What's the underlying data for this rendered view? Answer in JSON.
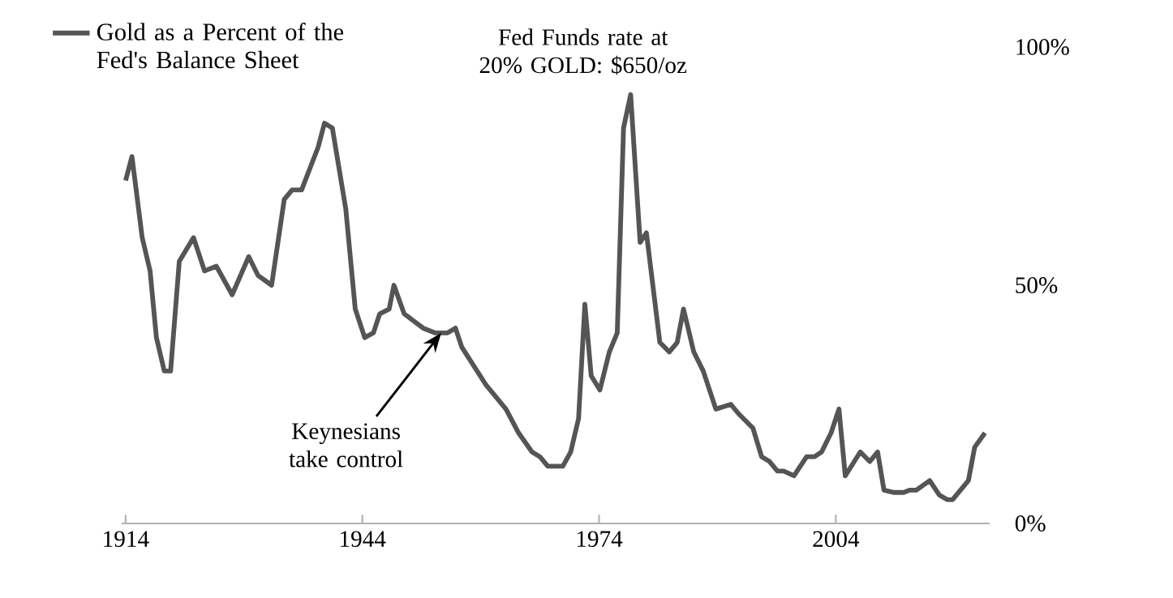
{
  "chart_data": {
    "type": "line",
    "x": [
      1914.0,
      1914.8,
      1916.1,
      1917.1,
      1917.9,
      1918.9,
      1919.7,
      1920.8,
      1922.6,
      1924.0,
      1925.5,
      1927.5,
      1929.6,
      1930.8,
      1932.5,
      1934.1,
      1935.1,
      1936.3,
      1938.4,
      1939.2,
      1940.2,
      1941.9,
      1943.1,
      1944.3,
      1945.4,
      1946.2,
      1947.4,
      1948.0,
      1949.3,
      1950.1,
      1951.7,
      1953.2,
      1954.0,
      1954.8,
      1955.8,
      1956.6,
      1959.7,
      1962.2,
      1963.8,
      1965.5,
      1966.5,
      1967.5,
      1969.4,
      1970.4,
      1971.4,
      1972.2,
      1973.0,
      1974.1,
      1975.3,
      1976.3,
      1977.1,
      1978.0,
      1979.2,
      1980.0,
      1981.7,
      1982.9,
      1983.9,
      1984.7,
      1986.0,
      1987.2,
      1988.8,
      1990.7,
      1991.7,
      1992.9,
      1993.5,
      1994.6,
      1995.6,
      1996.6,
      1997.4,
      1998.7,
      2000.3,
      2001.3,
      2002.2,
      2003.4,
      2004.4,
      2005.2,
      2007.1,
      2008.3,
      2009.3,
      2010.1,
      2011.4,
      2012.6,
      2013.4,
      2014.2,
      2015.9,
      2017.1,
      2018.1,
      2018.8,
      2020.8,
      2021.6,
      2022.9
    ],
    "series": [
      {
        "name": "Gold as a Percent of the Fed's Balance Sheet",
        "color": "#555555",
        "values": [
          72,
          77,
          60,
          53,
          39,
          32,
          32,
          55,
          60,
          53,
          54,
          48,
          56,
          52,
          50,
          68,
          70,
          70,
          79,
          84,
          83,
          66,
          45,
          39,
          40,
          44,
          45,
          50,
          44,
          43,
          41,
          40,
          40,
          40,
          41,
          37,
          29,
          24,
          19,
          15,
          14,
          12,
          12,
          15,
          22,
          46,
          31,
          28,
          36,
          40,
          83,
          90,
          59,
          61,
          38,
          36,
          38,
          45,
          36,
          32,
          24,
          25,
          23,
          21,
          20,
          14,
          13,
          11,
          11,
          10,
          14,
          14,
          15,
          19,
          24,
          10,
          15,
          13,
          15,
          7,
          6.5,
          6.5,
          7,
          7,
          9,
          6,
          5,
          5,
          9,
          16,
          19
        ]
      }
    ],
    "xlim": [
      1913.5,
      2023.5
    ],
    "xticks": [
      1914,
      1944,
      1974,
      2004
    ],
    "ylim": [
      0,
      100
    ],
    "yticks": [
      {
        "value": 0,
        "label": "0%"
      },
      {
        "value": 50,
        "label": "50%"
      },
      {
        "value": 100,
        "label": "100%"
      }
    ],
    "legend": "top left",
    "grid": false,
    "line_style": "solid",
    "marker": "none",
    "annotations": [
      {
        "text": "Fed Funds rate at 20% GOLD: $650/oz",
        "x": 1978,
        "y": 90
      },
      {
        "text": "Keynesians take control",
        "x": 1954,
        "y": 40
      }
    ]
  }
}
